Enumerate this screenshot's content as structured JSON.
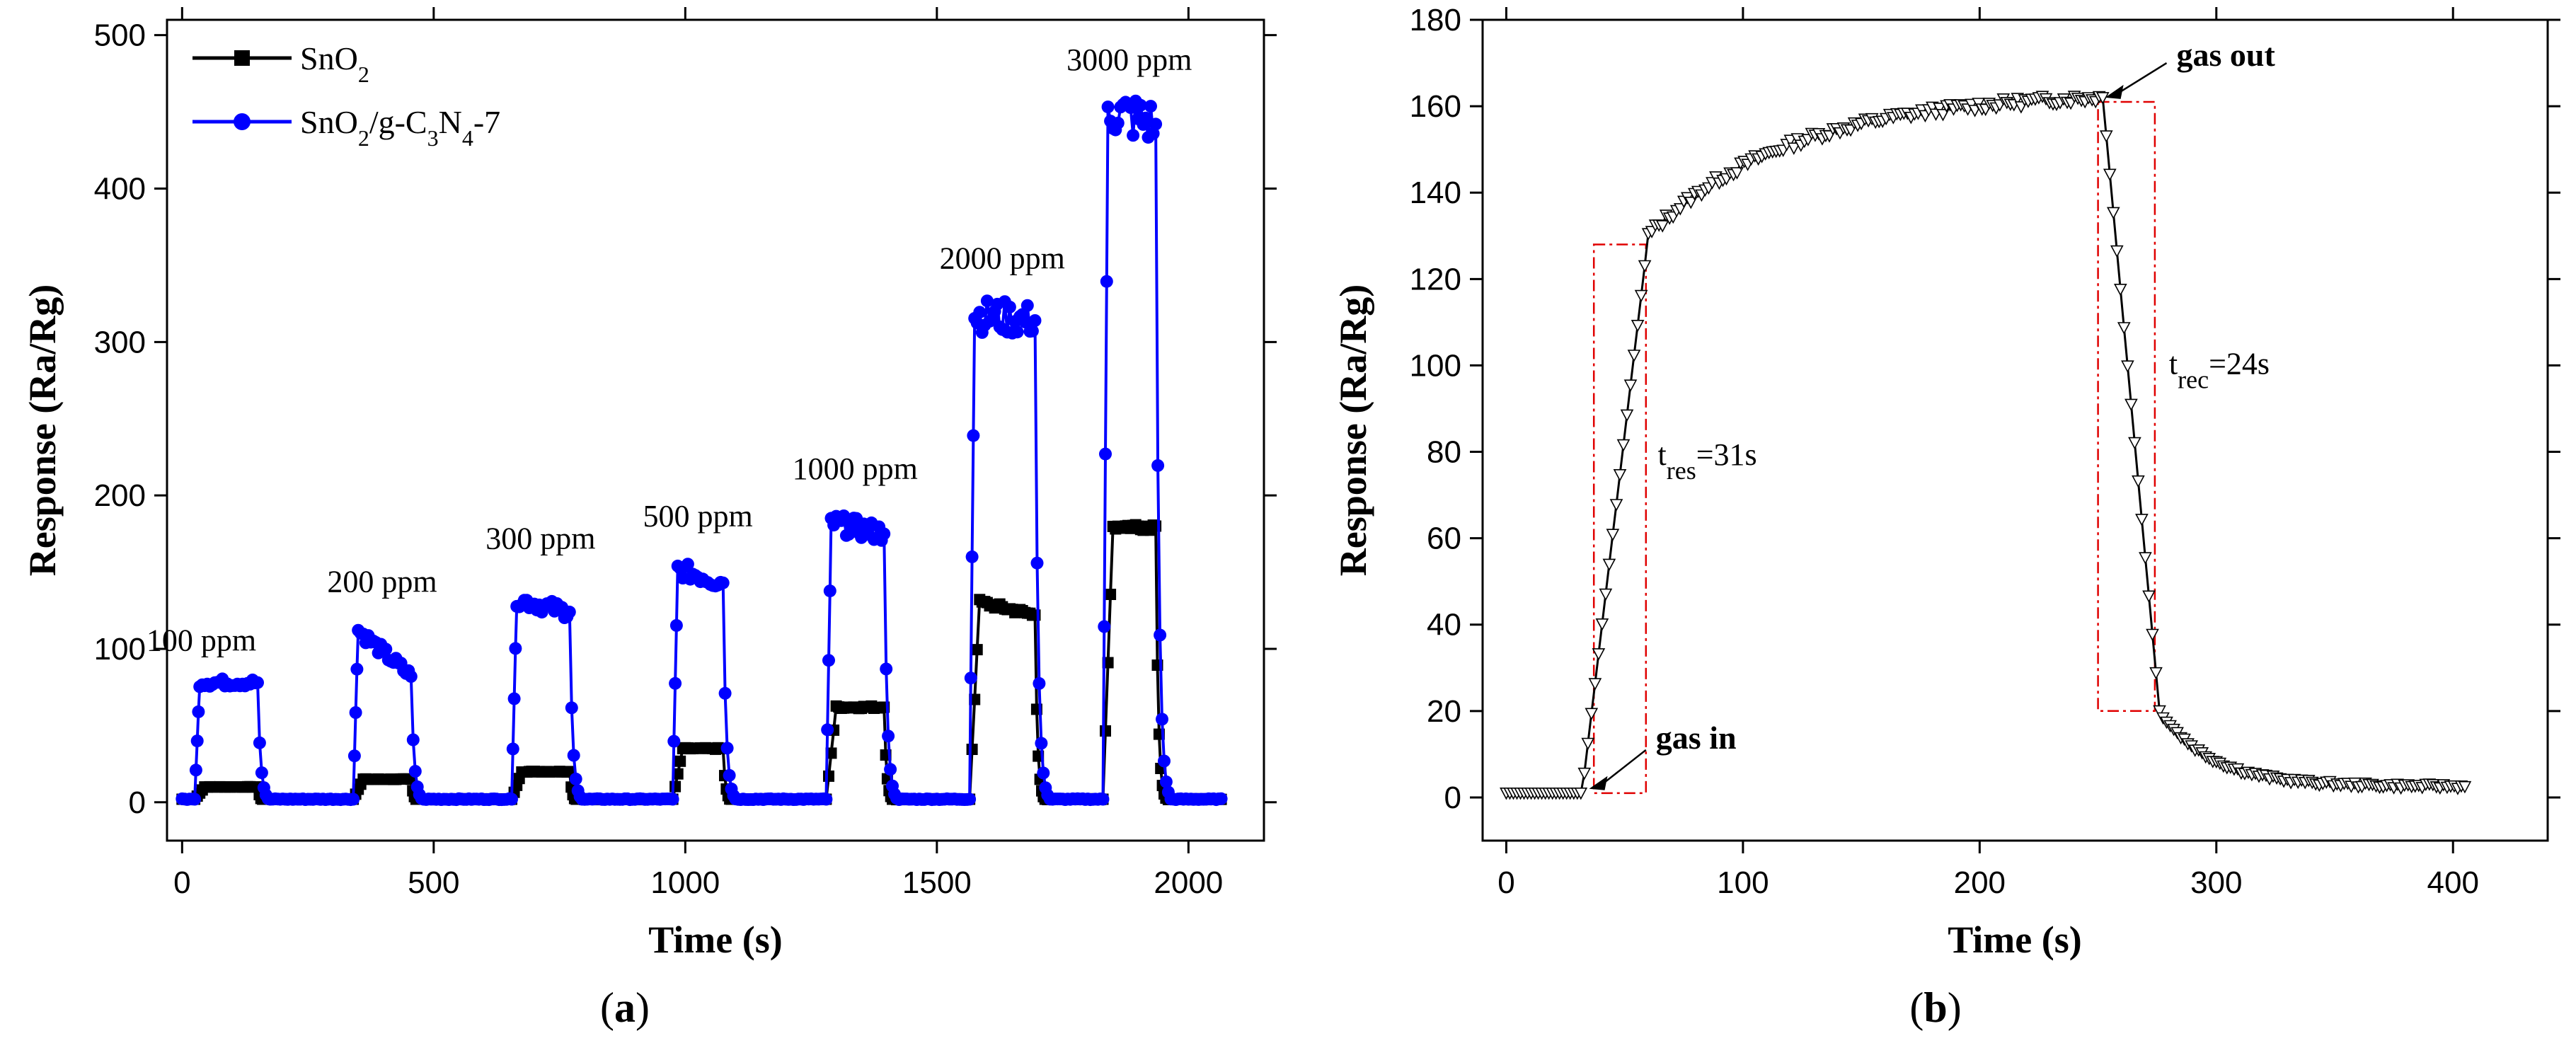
{
  "panels": {
    "a": {
      "label": "(a)",
      "label_letter": "a"
    },
    "b": {
      "label": "(b)",
      "label_letter": "b"
    }
  },
  "chart_data": [
    {
      "type": "line",
      "title": "",
      "xlabel": "Time (s)",
      "ylabel": "Response (Ra/Rg)",
      "xlim": [
        -30,
        2150
      ],
      "ylim": [
        -25,
        510
      ],
      "xticks": [
        0,
        500,
        1000,
        1500,
        2000
      ],
      "yticks": [
        0,
        100,
        200,
        300,
        400,
        500
      ],
      "legend": {
        "placement": "top-left",
        "entries": [
          {
            "name": "SnO2",
            "text": "SnO",
            "sub": "2"
          },
          {
            "name": "SnO2/g-C3N4-7",
            "parts": [
              [
                "SnO",
                ""
              ],
              [
                "2",
                "sub"
              ],
              [
                "/g-C",
                ""
              ],
              [
                "3",
                "sub"
              ],
              [
                "N",
                ""
              ],
              [
                "4",
                "sub"
              ],
              [
                "-7",
                ""
              ]
            ]
          }
        ]
      },
      "concentrations": [
        {
          "label": "100 ppm",
          "on": 25,
          "off": 150,
          "blue": 78,
          "black": 10
        },
        {
          "label": "200 ppm",
          "on": 340,
          "off": 455,
          "blue": 115,
          "blue_end": 82,
          "black": 15
        },
        {
          "label": "300 ppm",
          "on": 655,
          "off": 770,
          "blue": 133,
          "blue_end": 124,
          "black": 20
        },
        {
          "label": "500 ppm",
          "on": 975,
          "off": 1075,
          "blue": 153,
          "blue_end": 143,
          "black": 35
        },
        {
          "label": "1000 ppm",
          "on": 1280,
          "off": 1395,
          "blue": 183,
          "blue_end": 175,
          "black": 62
        },
        {
          "label": "2000 ppm",
          "on": 1565,
          "off": 1695,
          "blue": 318,
          "blue_end": 314,
          "black": 132,
          "black_end": 122
        },
        {
          "label": "3000 ppm",
          "on": 1830,
          "off": 1935,
          "blue": 452,
          "blue_end": 442,
          "black": 180
        }
      ],
      "series": [
        {
          "name": "SnO2",
          "color": "#000000",
          "marker": "square"
        },
        {
          "name": "SnO2/g-C3N4-7",
          "color": "#0000ff",
          "marker": "circle"
        }
      ],
      "baseline": 2,
      "x_end": 2065
    },
    {
      "type": "scatter",
      "title": "",
      "xlabel": "Time (s)",
      "ylabel": "Response (Ra/Rg)",
      "xlim": [
        -10,
        440
      ],
      "ylim": [
        -10,
        180
      ],
      "xticks": [
        0,
        100,
        200,
        300,
        400
      ],
      "yticks": [
        0,
        20,
        40,
        60,
        80,
        100,
        120,
        140,
        160,
        180
      ],
      "series": [
        {
          "name": "response",
          "color": "#000000",
          "marker": "triangle-down-open"
        }
      ],
      "events": {
        "gas_in_t": 32,
        "gas_out_t": 252,
        "baseline": 1,
        "plateau_start": 130,
        "plateau_end": 162,
        "final": 2.5,
        "x_end": 405
      },
      "annotations": {
        "gas_in": "gas in",
        "gas_out": "gas out",
        "t_res": {
          "main": "t",
          "sub": "res",
          "rest": "=31s"
        },
        "t_rec": {
          "main": "t",
          "sub": "rec",
          "rest": "=24s"
        }
      },
      "boxes": [
        {
          "name": "response-window",
          "x0": 37,
          "x1": 59,
          "y0": 1,
          "y1": 128
        },
        {
          "name": "recovery-window",
          "x0": 250,
          "x1": 274,
          "y0": 20,
          "y1": 161
        }
      ]
    }
  ]
}
